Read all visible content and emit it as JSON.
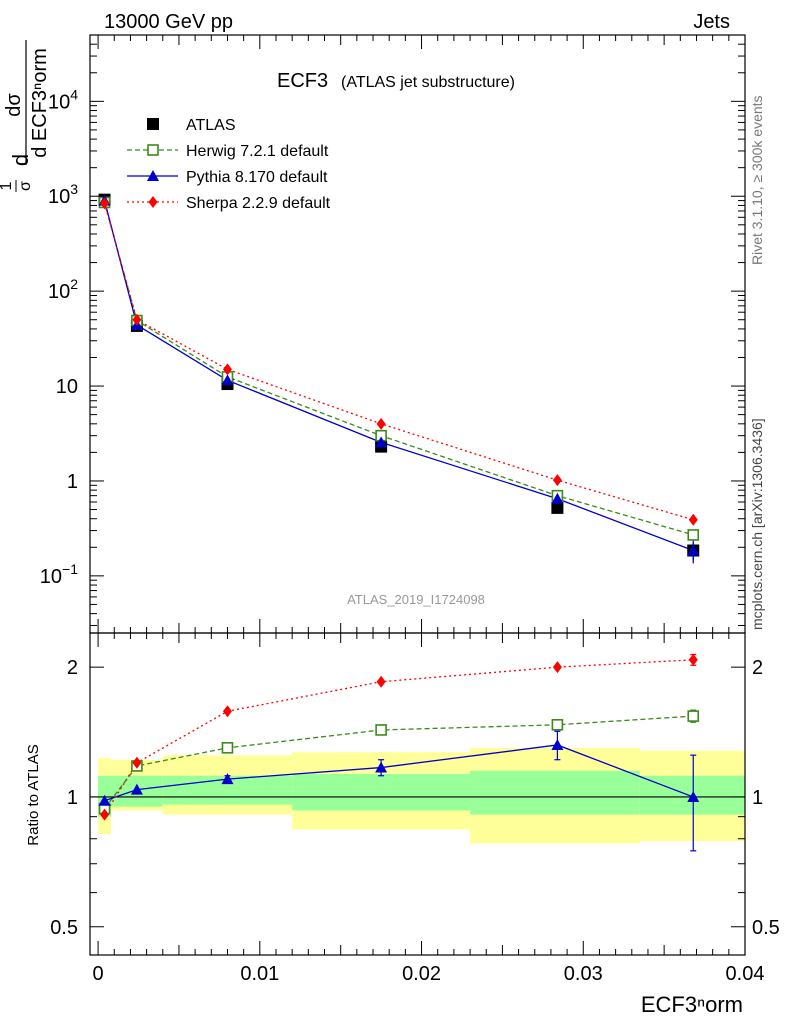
{
  "header": {
    "beam": "13000 GeV pp",
    "process": "Jets"
  },
  "side": {
    "rivet": "Rivet 3.1.10, ≥ 300k events",
    "mcplots": "mcplots.cern.ch [arXiv:1306.3436]"
  },
  "analysis_id": "ATLAS_2019_I1724098",
  "colors": {
    "atlas": "#000000",
    "herwig": "#3a8a1a",
    "pythia": "#0000cc",
    "sherpa": "#ff0000",
    "band_outer": "#ffff99",
    "band_inner": "#99ff99"
  },
  "chart_data": [
    {
      "type": "scatter",
      "panel": "main",
      "title": "ECF3",
      "subtitle": "(ATLAS jet substructure)",
      "ylabel_top": "dσ",
      "ylabel_bottom": "d ECF3ⁿorm",
      "ylabel_prefix_num": "1",
      "ylabel_prefix_den": "σ",
      "ylabel_d": "d",
      "yscale": "log",
      "ylim": [
        0.025,
        50000
      ],
      "xlim": [
        -0.0005,
        0.04
      ],
      "y_ticks": [
        {
          "value": 0.1,
          "base": "10",
          "exp": "−1"
        },
        {
          "value": 1,
          "base": "1",
          "exp": ""
        },
        {
          "value": 10,
          "base": "10",
          "exp": ""
        },
        {
          "value": 100,
          "base": "10",
          "exp": "2"
        },
        {
          "value": 1000,
          "base": "10",
          "exp": "3"
        },
        {
          "value": 10000,
          "base": "10",
          "exp": "4"
        }
      ],
      "legend_position": "top-left",
      "x": [
        0.0004,
        0.0024,
        0.008,
        0.0175,
        0.0284,
        0.0368
      ],
      "series": [
        {
          "name": "ATLAS",
          "marker": "square",
          "line": "none",
          "values": [
            920,
            43,
            10.5,
            2.3,
            0.52,
            0.185
          ],
          "errors": [
            15,
            1,
            0.3,
            0.1,
            0.04,
            0.04
          ]
        },
        {
          "name": "Herwig 7.2.1 default",
          "marker": "open-square",
          "line": "dashed",
          "values": [
            860,
            49,
            12.5,
            3.0,
            0.7,
            0.27
          ]
        },
        {
          "name": "Pythia 8.170 default",
          "marker": "triangle",
          "line": "solid",
          "values": [
            900,
            44,
            11.5,
            2.55,
            0.65,
            0.185
          ],
          "errors": [
            10,
            1,
            0.3,
            0.12,
            0.06,
            0.05
          ]
        },
        {
          "name": "Sherpa 2.2.9 default",
          "marker": "diamond",
          "line": "dotted",
          "values": [
            840,
            50,
            15,
            4.0,
            1.02,
            0.39
          ]
        }
      ]
    },
    {
      "type": "scatter",
      "panel": "ratio",
      "ylabel": "Ratio to ATLAS",
      "xlabel": "ECF3ⁿorm",
      "ylim": [
        0.43,
        2.4
      ],
      "yscale": "log",
      "xlim": [
        -0.0005,
        0.04
      ],
      "y_ticks": [
        {
          "value": 0.5,
          "label": "0.5"
        },
        {
          "value": 1,
          "label": "1"
        },
        {
          "value": 2,
          "label": "2"
        }
      ],
      "x_ticks": [
        {
          "value": 0,
          "label": "0"
        },
        {
          "value": 0.01,
          "label": "0.01"
        },
        {
          "value": 0.02,
          "label": "0.02"
        },
        {
          "value": 0.03,
          "label": "0.03"
        },
        {
          "value": 0.04,
          "label": "0.04"
        }
      ],
      "bands": [
        {
          "x0": 0.0,
          "x1": 0.0008,
          "outer": [
            0.82,
            1.23
          ],
          "inner": [
            0.9,
            1.12
          ]
        },
        {
          "x0": 0.0008,
          "x1": 0.004,
          "outer": [
            0.93,
            1.22
          ],
          "inner": [
            0.95,
            1.12
          ]
        },
        {
          "x0": 0.004,
          "x1": 0.012,
          "outer": [
            0.91,
            1.25
          ],
          "inner": [
            0.96,
            1.12
          ]
        },
        {
          "x0": 0.012,
          "x1": 0.023,
          "outer": [
            0.84,
            1.27
          ],
          "inner": [
            0.93,
            1.13
          ]
        },
        {
          "x0": 0.023,
          "x1": 0.0335,
          "outer": [
            0.78,
            1.3
          ],
          "inner": [
            0.91,
            1.15
          ]
        },
        {
          "x0": 0.0335,
          "x1": 0.04,
          "outer": [
            0.79,
            1.28
          ],
          "inner": [
            0.91,
            1.12
          ]
        }
      ],
      "x": [
        0.0004,
        0.0024,
        0.008,
        0.0175,
        0.0284,
        0.0368
      ],
      "series": [
        {
          "name": "Herwig 7.2.1 default",
          "marker": "open-square",
          "line": "dashed",
          "values": [
            0.94,
            1.18,
            1.3,
            1.43,
            1.47,
            1.54
          ],
          "errors": [
            0,
            0,
            0,
            0,
            0.02,
            0.05
          ]
        },
        {
          "name": "Pythia 8.170 default",
          "marker": "triangle",
          "line": "solid",
          "values": [
            0.98,
            1.04,
            1.1,
            1.17,
            1.32,
            1.0
          ],
          "errors": [
            0,
            0,
            0.02,
            0.05,
            0.1,
            0.25
          ]
        },
        {
          "name": "Sherpa 2.2.9 default",
          "marker": "diamond",
          "line": "dotted",
          "values": [
            0.91,
            1.2,
            1.58,
            1.85,
            2.0,
            2.08
          ],
          "errors": [
            0,
            0,
            0,
            0,
            0,
            0.06
          ]
        }
      ]
    }
  ]
}
